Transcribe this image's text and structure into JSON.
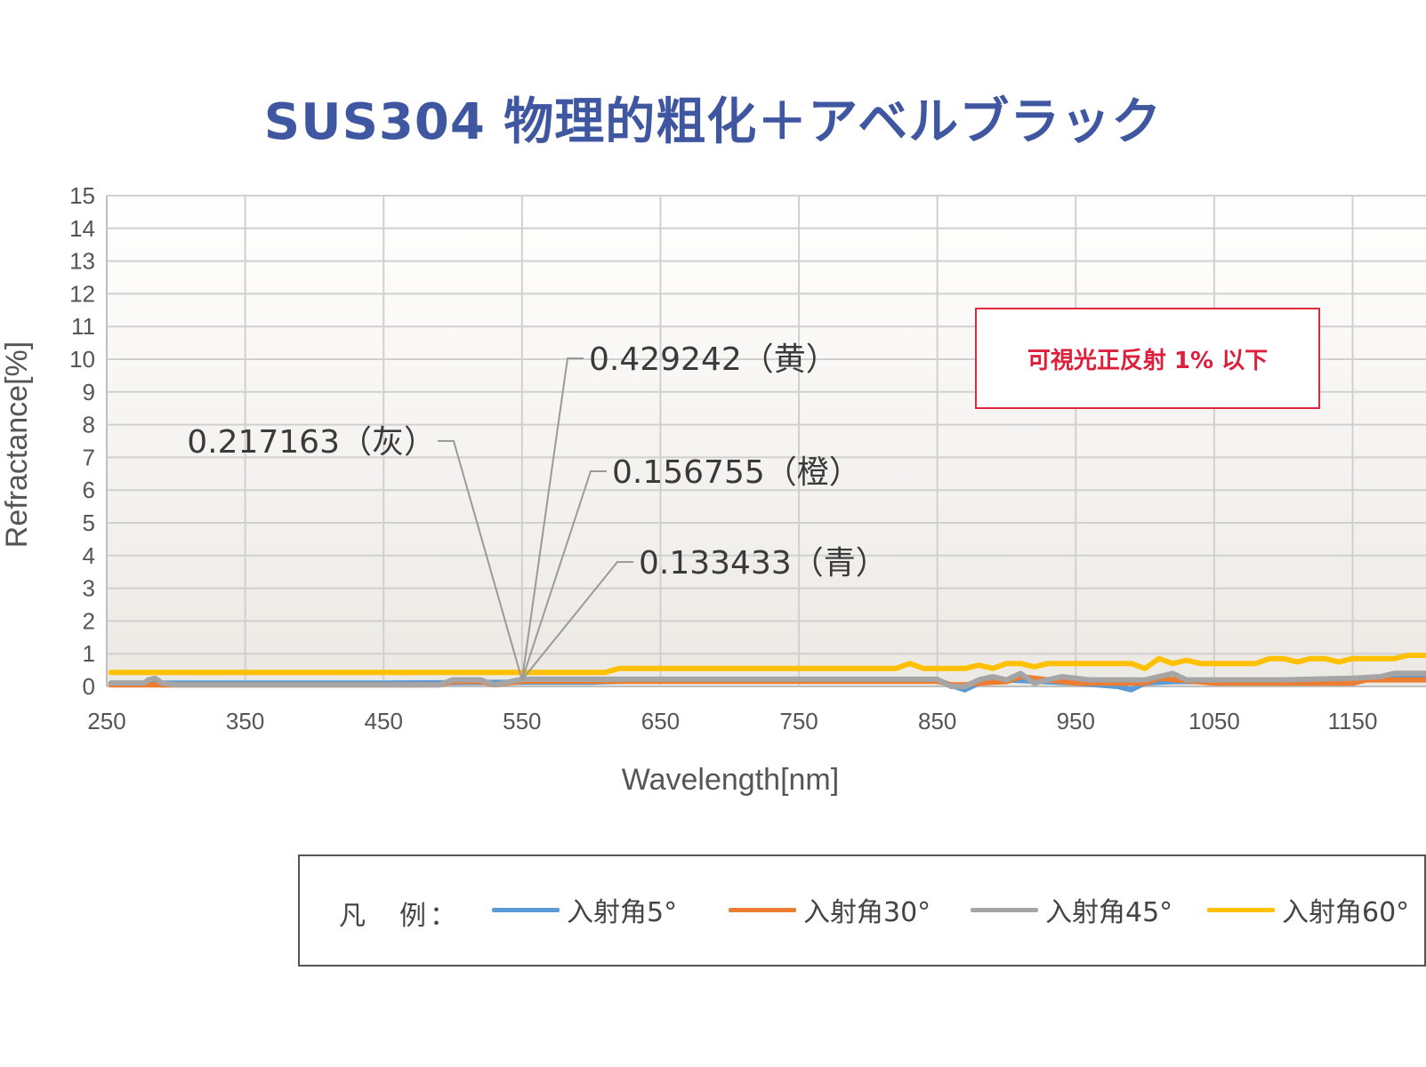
{
  "chart_data": {
    "type": "line",
    "title": "SUS304 物理的粗化＋アベルブラック",
    "xlabel": "Wavelength[nm]",
    "ylabel": "Refractance[%]",
    "xlim": [
      250,
      1203
    ],
    "ylim": [
      0,
      15
    ],
    "x_ticks": [
      "250",
      "350",
      "450",
      "550",
      "650",
      "750",
      "850",
      "950",
      "1050",
      "1150"
    ],
    "y_ticks": [
      "0",
      "1",
      "2",
      "3",
      "4",
      "5",
      "6",
      "7",
      "8",
      "9",
      "10",
      "11",
      "12",
      "13",
      "14",
      "15"
    ],
    "grid": true,
    "legend_position": "bottom",
    "legend_label": "凡　例：",
    "series": [
      {
        "name": "入射角5°",
        "color": "#5b9bd5",
        "x": [
          253,
          450,
          550,
          600,
          650,
          750,
          850,
          862,
          870,
          880,
          900,
          950,
          980,
          990,
          1000,
          1020,
          1050,
          1100,
          1150,
          1160,
          1170,
          1203
        ],
        "y": [
          0.1,
          0.1,
          0.13,
          0.13,
          0.2,
          0.2,
          0.2,
          0.0,
          -0.1,
          0.1,
          0.2,
          0.1,
          0.0,
          -0.1,
          0.1,
          0.15,
          0.15,
          0.15,
          0.1,
          0.2,
          0.3,
          0.3
        ]
      },
      {
        "name": "入射角30°",
        "color": "#ed7d31",
        "x": [
          253,
          450,
          490,
          500,
          520,
          530,
          550,
          600,
          650,
          750,
          850,
          860,
          870,
          880,
          900,
          910,
          950,
          1000,
          1010,
          1050,
          1100,
          1150,
          1160,
          1203
        ],
        "y": [
          0.05,
          0.05,
          0.05,
          0.15,
          0.15,
          0.05,
          0.16,
          0.16,
          0.16,
          0.16,
          0.16,
          0.05,
          0.05,
          0.1,
          0.15,
          0.3,
          0.1,
          0.1,
          0.25,
          0.1,
          0.1,
          0.1,
          0.2,
          0.2
        ]
      },
      {
        "name": "入射角45°",
        "color": "#a5a5a5",
        "x": [
          253,
          277,
          280,
          285,
          290,
          300,
          450,
          490,
          500,
          520,
          530,
          550,
          600,
          650,
          700,
          750,
          800,
          850,
          855,
          860,
          870,
          880,
          890,
          900,
          910,
          920,
          930,
          940,
          960,
          980,
          1000,
          1010,
          1020,
          1030,
          1050,
          1100,
          1150,
          1170,
          1180,
          1203
        ],
        "y": [
          0.1,
          0.1,
          0.2,
          0.25,
          0.1,
          0.05,
          0.05,
          0.05,
          0.2,
          0.2,
          0.05,
          0.22,
          0.22,
          0.22,
          0.22,
          0.22,
          0.22,
          0.22,
          0.1,
          0.0,
          0.0,
          0.2,
          0.3,
          0.2,
          0.4,
          0.1,
          0.2,
          0.3,
          0.2,
          0.2,
          0.2,
          0.3,
          0.4,
          0.2,
          0.2,
          0.2,
          0.25,
          0.3,
          0.4,
          0.4
        ]
      },
      {
        "name": "入射角60°",
        "color": "#ffc000",
        "x": [
          253,
          450,
          550,
          610,
          620,
          650,
          750,
          800,
          820,
          830,
          840,
          860,
          870,
          880,
          890,
          900,
          910,
          920,
          930,
          960,
          990,
          1000,
          1010,
          1020,
          1030,
          1040,
          1060,
          1080,
          1090,
          1100,
          1110,
          1120,
          1130,
          1140,
          1150,
          1160,
          1170,
          1180,
          1190,
          1203
        ],
        "y": [
          0.43,
          0.43,
          0.43,
          0.43,
          0.55,
          0.55,
          0.55,
          0.55,
          0.55,
          0.7,
          0.55,
          0.55,
          0.55,
          0.65,
          0.55,
          0.7,
          0.7,
          0.6,
          0.7,
          0.7,
          0.7,
          0.55,
          0.85,
          0.7,
          0.8,
          0.7,
          0.7,
          0.7,
          0.85,
          0.85,
          0.75,
          0.85,
          0.85,
          0.75,
          0.85,
          0.85,
          0.85,
          0.85,
          0.95,
          0.95
        ]
      }
    ],
    "annotations": [
      {
        "text": "0.429242（黄）",
        "x": 550,
        "y": 0.429242
      },
      {
        "text": "0.217163（灰）",
        "x": 550,
        "y": 0.217163
      },
      {
        "text": "0.156755（橙）",
        "x": 550,
        "y": 0.156755
      },
      {
        "text": "0.133433（青）",
        "x": 550,
        "y": 0.133433
      }
    ],
    "note": "可視光正反射 1% 以下"
  }
}
